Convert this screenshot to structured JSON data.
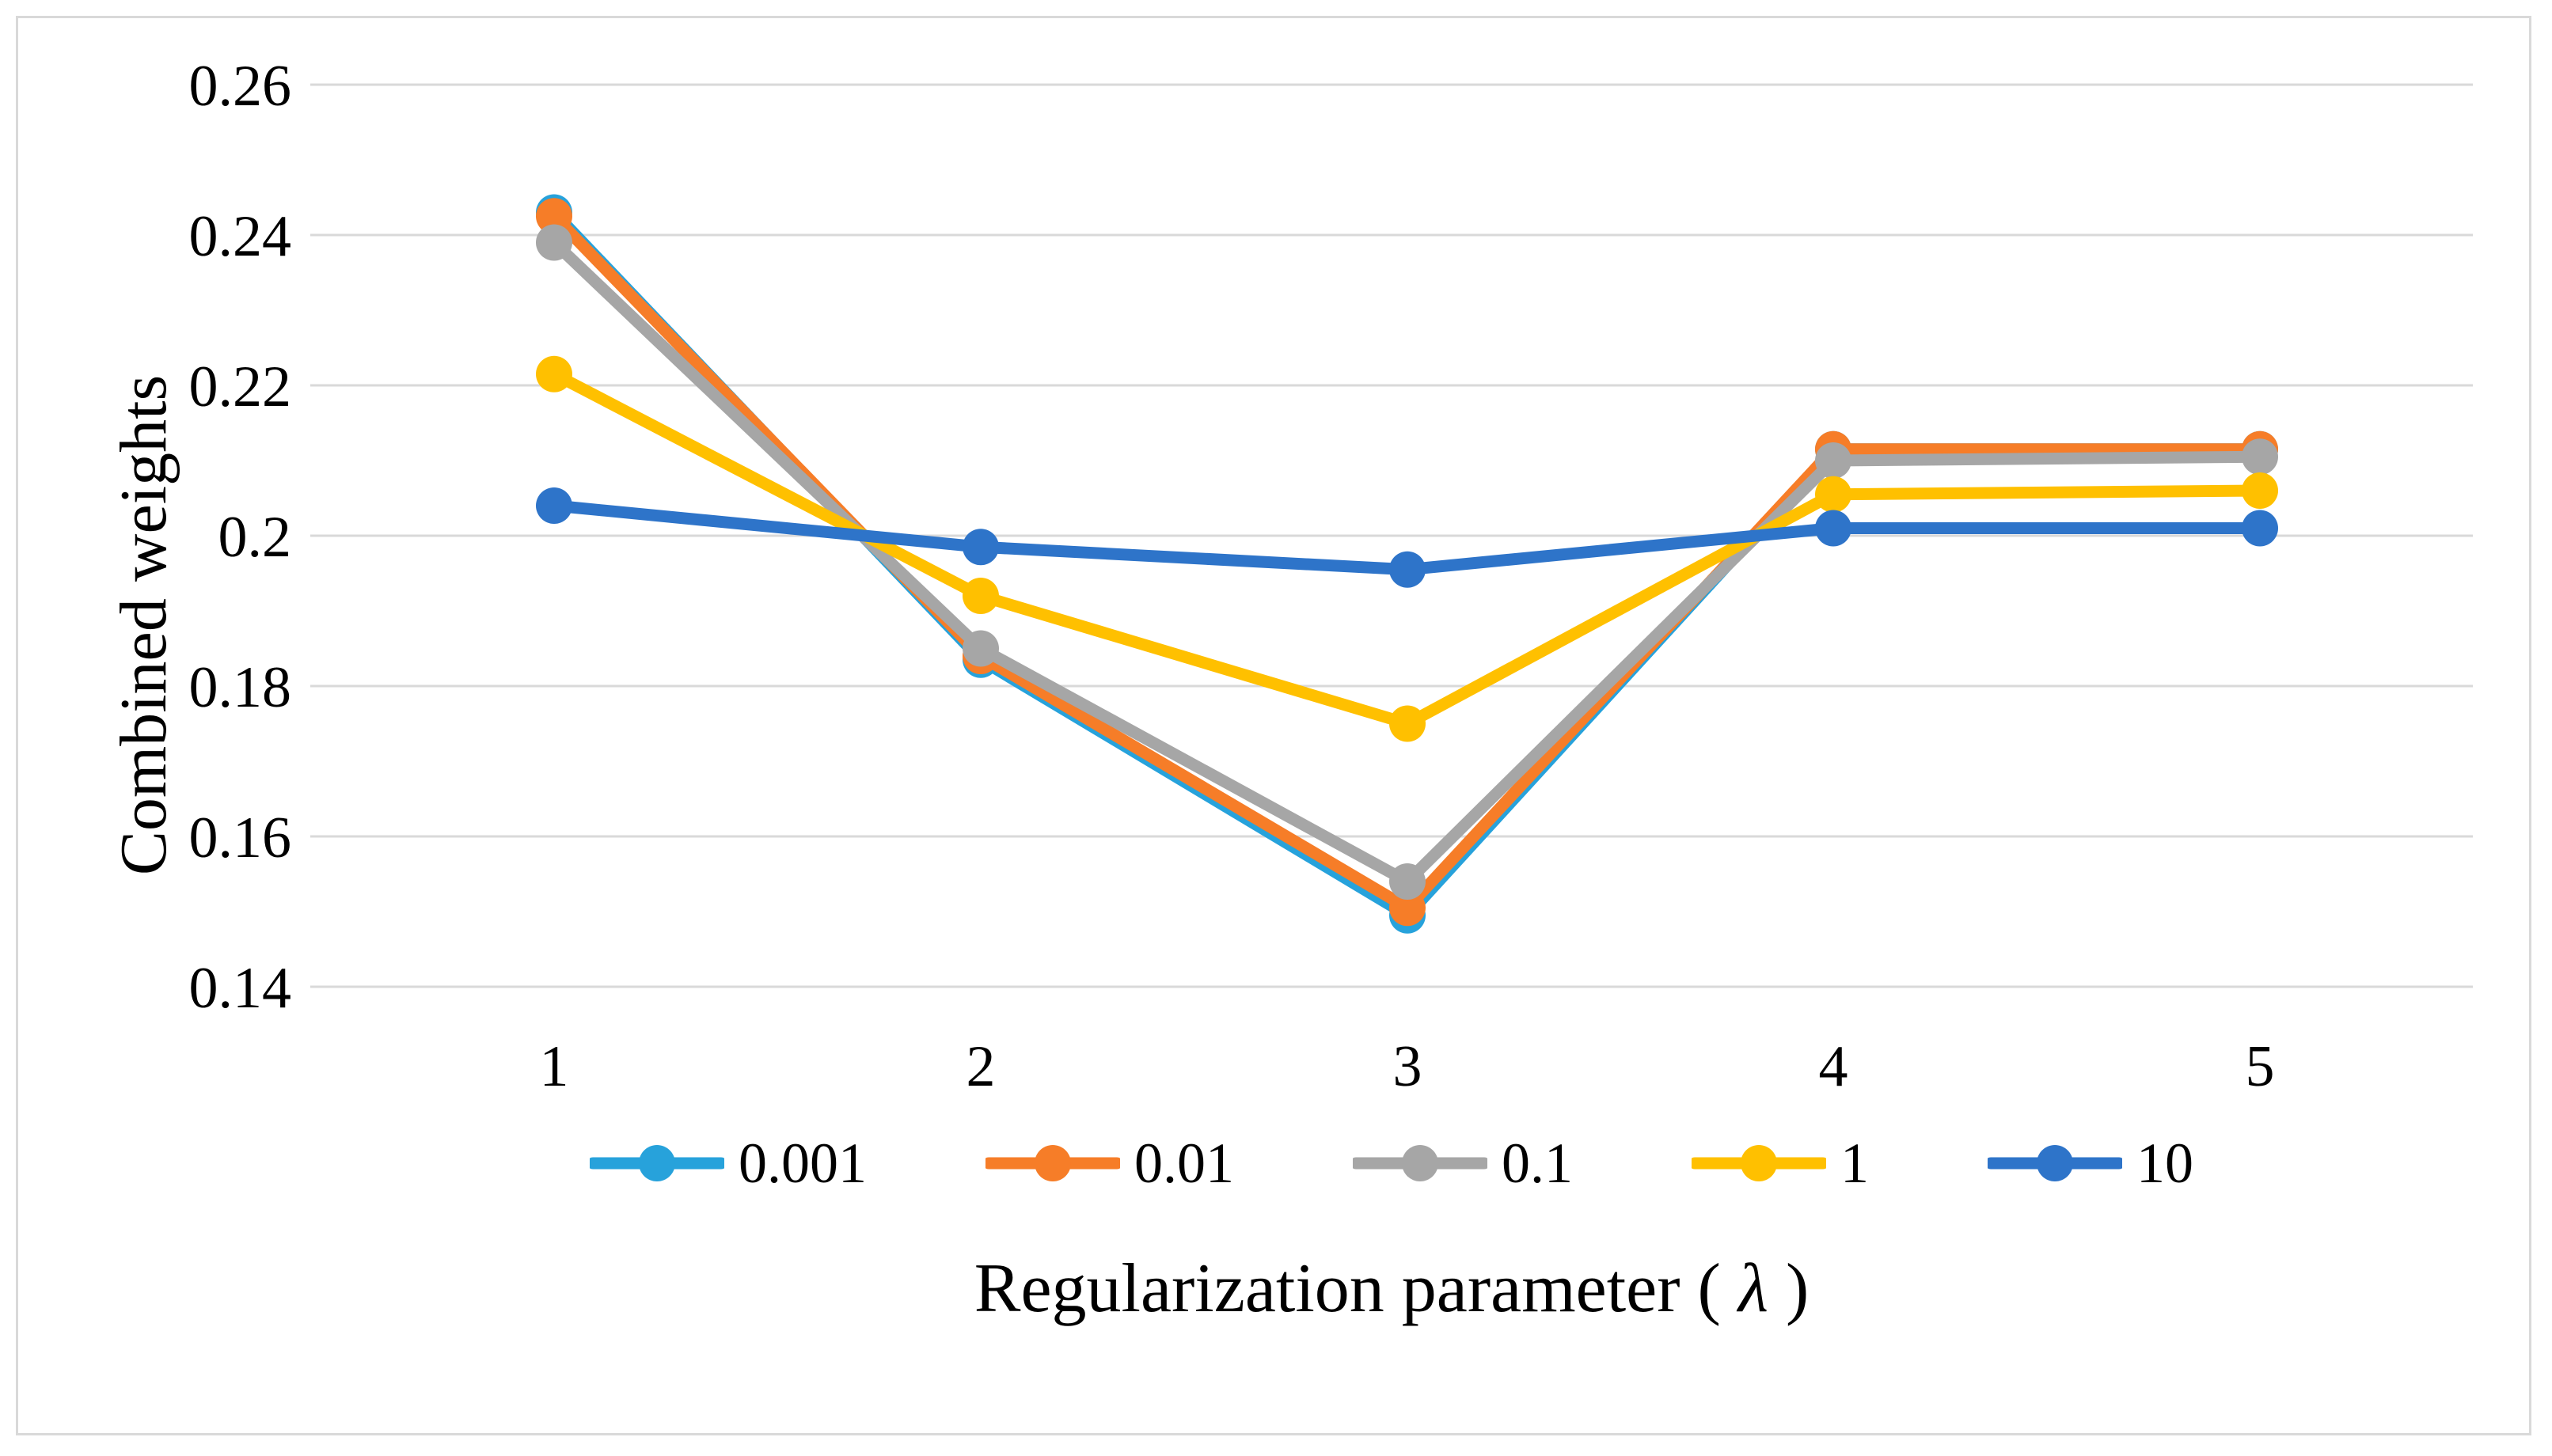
{
  "figure": {
    "background": "#FFFFFF",
    "border_color": "#D9D9D9"
  },
  "chart_data": {
    "type": "line",
    "title": "",
    "xlabel": "Regularization parameter ( λ )",
    "ylabel": "Combined weights",
    "x": [
      1,
      2,
      3,
      4,
      5
    ],
    "x_tick_labels": [
      "1",
      "2",
      "3",
      "4",
      "5"
    ],
    "y_tick_labels": [
      "0.26",
      "0.24",
      "0.22",
      "0.2",
      "0.18",
      "0.16",
      "0.14"
    ],
    "ylim": [
      0.14,
      0.26
    ],
    "y_tick_step": 0.02,
    "grid": true,
    "gridline_color": "#D9D9D9",
    "legend_position": "bottom",
    "marker": "circle",
    "series": [
      {
        "name": "0.001",
        "color": "#27A2DB",
        "values": [
          0.243,
          0.1835,
          0.1495,
          0.2115,
          0.2115
        ]
      },
      {
        "name": "0.01",
        "color": "#F67D28",
        "values": [
          0.2425,
          0.184,
          0.1505,
          0.2115,
          0.2115
        ]
      },
      {
        "name": "0.1",
        "color": "#A6A6A6",
        "values": [
          0.239,
          0.185,
          0.154,
          0.21,
          0.2105
        ]
      },
      {
        "name": "1",
        "color": "#FFC000",
        "values": [
          0.2215,
          0.192,
          0.175,
          0.2055,
          0.206
        ]
      },
      {
        "name": "10",
        "color": "#2E74C9",
        "values": [
          0.204,
          0.1985,
          0.1955,
          0.201,
          0.201
        ]
      }
    ]
  }
}
